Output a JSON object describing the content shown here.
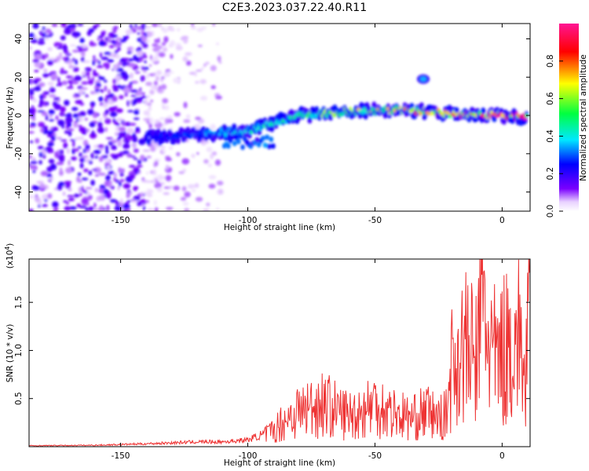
{
  "title": "C2E3.2023.037.22.40.R11",
  "colors": {
    "snr_line": "#ee3333",
    "frame": "#000000"
  },
  "chart_data": [
    {
      "type": "heatmap",
      "xlabel": "Height of straight line (km)",
      "ylabel": "Frequency (Hz)",
      "xlim": [
        -186,
        11
      ],
      "ylim": [
        -50,
        48
      ],
      "x_ticks": [
        -150,
        -100,
        -50,
        0
      ],
      "y_ticks": [
        -40,
        -20,
        0,
        20,
        40
      ],
      "colormap": "rainbow (white to purple to blue to cyan to green to yellow to red to pink)",
      "colorbar": {
        "label": "Normalized spectral amplitude",
        "range": [
          0.0,
          1.0
        ],
        "ticks": [
          0.0,
          0.2,
          0.4,
          0.6,
          0.8
        ]
      },
      "features": [
        {
          "name": "noise",
          "x_range": [
            -186,
            -130
          ],
          "freq_range": [
            -50,
            48
          ],
          "amplitude": 0.15
        },
        {
          "name": "main_band",
          "x": [
            -140,
            -120,
            -100,
            -80,
            -60,
            -40,
            -20,
            0,
            10
          ],
          "freq": [
            -12,
            -10,
            -8,
            0,
            2,
            3,
            1,
            0,
            -1
          ],
          "peak_amplitude": 0.9
        },
        {
          "name": "secondary_band",
          "x_range": [
            -110,
            -90
          ],
          "freq": -14,
          "amplitude": 0.3
        },
        {
          "name": "blob",
          "x": -31,
          "freq": 19,
          "amplitude": 0.2
        }
      ]
    },
    {
      "type": "line",
      "xlabel": "Height of straight line (km)",
      "ylabel": "SNR (10 * v/v)",
      "multiplier": "(x10^4)",
      "multiplier_base": "(x10",
      "multiplier_exp": "4",
      "xlim": [
        -186,
        11
      ],
      "ylim": [
        0,
        1.95
      ],
      "x_ticks": [
        -150,
        -100,
        -50,
        0
      ],
      "y_ticks": [
        0.5,
        1.0,
        1.5
      ],
      "series": [
        {
          "x": [
            -186,
            -160,
            -140,
            -130,
            -120,
            -110,
            -100,
            -95,
            -90,
            -85,
            -80,
            -75,
            -70,
            -65,
            -60,
            -55,
            -50,
            -45,
            -40,
            -35,
            -30,
            -25,
            -22,
            -20,
            -15,
            -10,
            -8,
            -5,
            -2,
            0,
            3,
            6,
            8,
            9,
            10,
            11
          ],
          "y": [
            0.01,
            0.015,
            0.03,
            0.04,
            0.05,
            0.05,
            0.07,
            0.12,
            0.2,
            0.35,
            0.45,
            0.5,
            0.55,
            0.45,
            0.4,
            0.45,
            0.55,
            0.45,
            0.4,
            0.35,
            0.45,
            0.35,
            0.4,
            1.0,
            1.25,
            1.1,
            1.9,
            1.3,
            1.05,
            1.2,
            1.3,
            1.35,
            1.3,
            0.6,
            1.5,
            1.4
          ]
        }
      ]
    }
  ]
}
